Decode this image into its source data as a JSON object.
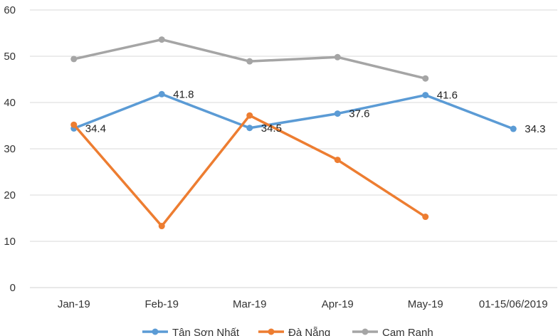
{
  "chart_data": {
    "type": "line",
    "categories": [
      "Jan-19",
      "Feb-19",
      "Mar-19",
      "Apr-19",
      "May-19",
      "01-15/06/2019"
    ],
    "ylim": [
      0,
      60
    ],
    "yticks": [
      0,
      10,
      20,
      30,
      40,
      50,
      60
    ],
    "grid": true,
    "legend_position": "bottom",
    "series": [
      {
        "name": "Tân Sơn Nhất",
        "color": "#5b9bd5",
        "values": [
          34.4,
          41.8,
          34.5,
          37.6,
          41.6,
          34.3
        ],
        "labels": [
          "34.4",
          "41.8",
          "34.5",
          "37.6",
          "41.6",
          "34.3"
        ]
      },
      {
        "name": "Đà Nẵng",
        "color": "#ed7d31",
        "values": [
          35.2,
          13.3,
          37.2,
          27.6,
          15.3,
          null
        ]
      },
      {
        "name": "Cam Ranh",
        "color": "#a5a5a5",
        "values": [
          49.4,
          53.6,
          48.9,
          49.8,
          45.2,
          null
        ]
      }
    ]
  }
}
